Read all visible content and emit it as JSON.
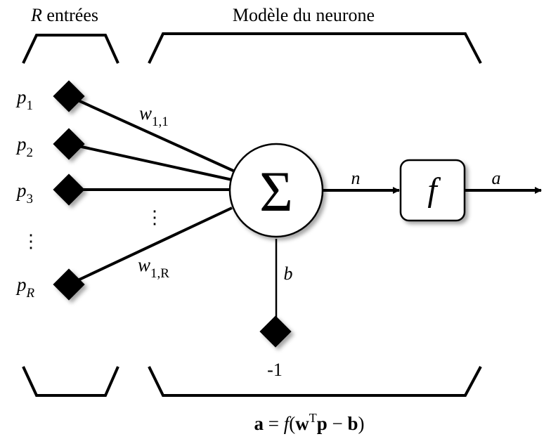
{
  "header": {
    "inputs_title_var": "R",
    "inputs_title_rest": " entrées",
    "model_title": "Modèle du neurone"
  },
  "inputs": [
    {
      "base": "p",
      "sub": "1"
    },
    {
      "base": "p",
      "sub": "2"
    },
    {
      "base": "p",
      "sub": "3"
    },
    {
      "base": "p",
      "sub": "R"
    }
  ],
  "input_ellipsis": "⋮",
  "weight_ellipsis": "⋮",
  "weights": [
    {
      "base": "w",
      "sub": "1,1"
    },
    {
      "base": "w",
      "sub": "1,R"
    }
  ],
  "summation_symbol": "Σ",
  "net_input_label": "n",
  "transfer_function_label": "f",
  "output_label": "a",
  "bias_label": "b",
  "bias_input_value": "-1",
  "formula": {
    "lhs": "a",
    "eq": " = ",
    "fn": "f",
    "open": "(",
    "w": "w",
    "sup": "T",
    "p": "p",
    "minus": " − ",
    "b": "b",
    "close": ")"
  }
}
